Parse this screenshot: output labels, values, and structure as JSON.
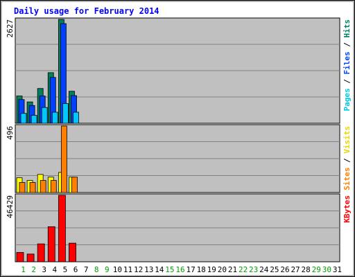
{
  "chart_data": {
    "type": "bar",
    "title": "Daily usage for February 2014",
    "x": [
      "1",
      "2",
      "3",
      "4",
      "5",
      "6",
      "7",
      "8",
      "9",
      "10",
      "11",
      "12",
      "13",
      "14",
      "15",
      "16",
      "17",
      "18",
      "19",
      "20",
      "21",
      "22",
      "23",
      "24",
      "25",
      "26",
      "27",
      "28",
      "29",
      "30",
      "31"
    ],
    "weekend_days": [
      "1",
      "2",
      "8",
      "9",
      "15",
      "16",
      "22",
      "23",
      "29",
      "30"
    ],
    "panels": [
      {
        "id": "top",
        "max_label": "2627",
        "ymax": 2627,
        "legend": [
          {
            "text": "Pages",
            "color": "#00c8e0"
          },
          {
            "text": " / ",
            "color": "#000000"
          },
          {
            "text": "Files",
            "color": "#0044ff"
          },
          {
            "text": " / ",
            "color": "#000000"
          },
          {
            "text": "Hits",
            "color": "#008060"
          }
        ],
        "series": [
          {
            "name": "Hits",
            "color": "#00805c",
            "values": [
              690,
              540,
              880,
              1280,
              2627,
              810
            ]
          },
          {
            "name": "Files",
            "color": "#0040ff",
            "values": [
              600,
              450,
              690,
              1160,
              2520,
              700
            ]
          },
          {
            "name": "Pages",
            "color": "#00c8ff",
            "values": [
              250,
              200,
              400,
              280,
              500,
              280
            ]
          }
        ]
      },
      {
        "id": "middle",
        "max_label": "496",
        "ymax": 496,
        "legend": [
          {
            "text": "Sites",
            "color": "#ff8000"
          },
          {
            "text": " / ",
            "color": "#000000"
          },
          {
            "text": "Visits",
            "color": "#e8d800"
          }
        ],
        "series": [
          {
            "name": "Visits",
            "color": "#ffff00",
            "values": [
              110,
              90,
              135,
              115,
              150,
              115
            ]
          },
          {
            "name": "Sites",
            "color": "#ff8000",
            "values": [
              75,
              75,
              90,
              90,
              496,
              115
            ]
          }
        ]
      },
      {
        "id": "bottom",
        "max_label": "46429",
        "ymax": 46429,
        "legend": [
          {
            "text": "KBytes",
            "color": "#ff0000"
          }
        ],
        "series": [
          {
            "name": "KBytes",
            "color": "#ff0000",
            "values": [
              6500,
              5400,
              12500,
              24500,
              46429,
              13000
            ]
          }
        ]
      }
    ],
    "colors": {
      "title": "#0000ff",
      "weekday_label": "#000000",
      "weekend_label": "#00a000",
      "plot_bg": "#c0c0c0",
      "grid": "#808080"
    }
  }
}
